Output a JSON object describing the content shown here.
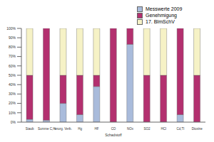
{
  "chart_data": {
    "type": "bar",
    "stacked": true,
    "x_label": "Schadstoff",
    "categories": [
      "Staub",
      "Summe C,H",
      "anorg. Verb.",
      "Hg",
      "HF",
      "CO",
      "NOx",
      "SO2",
      "HCl",
      "Cd,Tl",
      "Dioxine"
    ],
    "series": [
      {
        "name": "Messwerte 2009",
        "color": "#a9bbdb",
        "values": [
          3,
          2,
          20,
          8,
          38,
          0,
          83,
          0,
          0,
          8,
          0
        ]
      },
      {
        "name": "Genehmigung",
        "color": "#b3306f",
        "values": [
          47,
          98,
          30,
          42,
          12,
          100,
          17,
          50,
          50,
          92,
          50
        ]
      },
      {
        "name": "17. BImSchV",
        "color": "#f6f2c6",
        "values": [
          50,
          0,
          50,
          50,
          50,
          0,
          0,
          50,
          50,
          0,
          50
        ]
      }
    ],
    "ylim": [
      0,
      100
    ],
    "yticks": [
      {
        "value": 0,
        "label": "0%"
      },
      {
        "value": 10,
        "label": "10%"
      },
      {
        "value": 20,
        "label": "20%"
      },
      {
        "value": 30,
        "label": "30%"
      },
      {
        "value": 40,
        "label": "40%"
      },
      {
        "value": 50,
        "label": "50%"
      },
      {
        "value": 60,
        "label": "60%"
      },
      {
        "value": 70,
        "label": "70%"
      },
      {
        "value": 80,
        "label": "80%"
      },
      {
        "value": 90,
        "label": "90%"
      },
      {
        "value": 100,
        "label": "100%"
      }
    ],
    "grid": false,
    "legend": "top-right"
  }
}
